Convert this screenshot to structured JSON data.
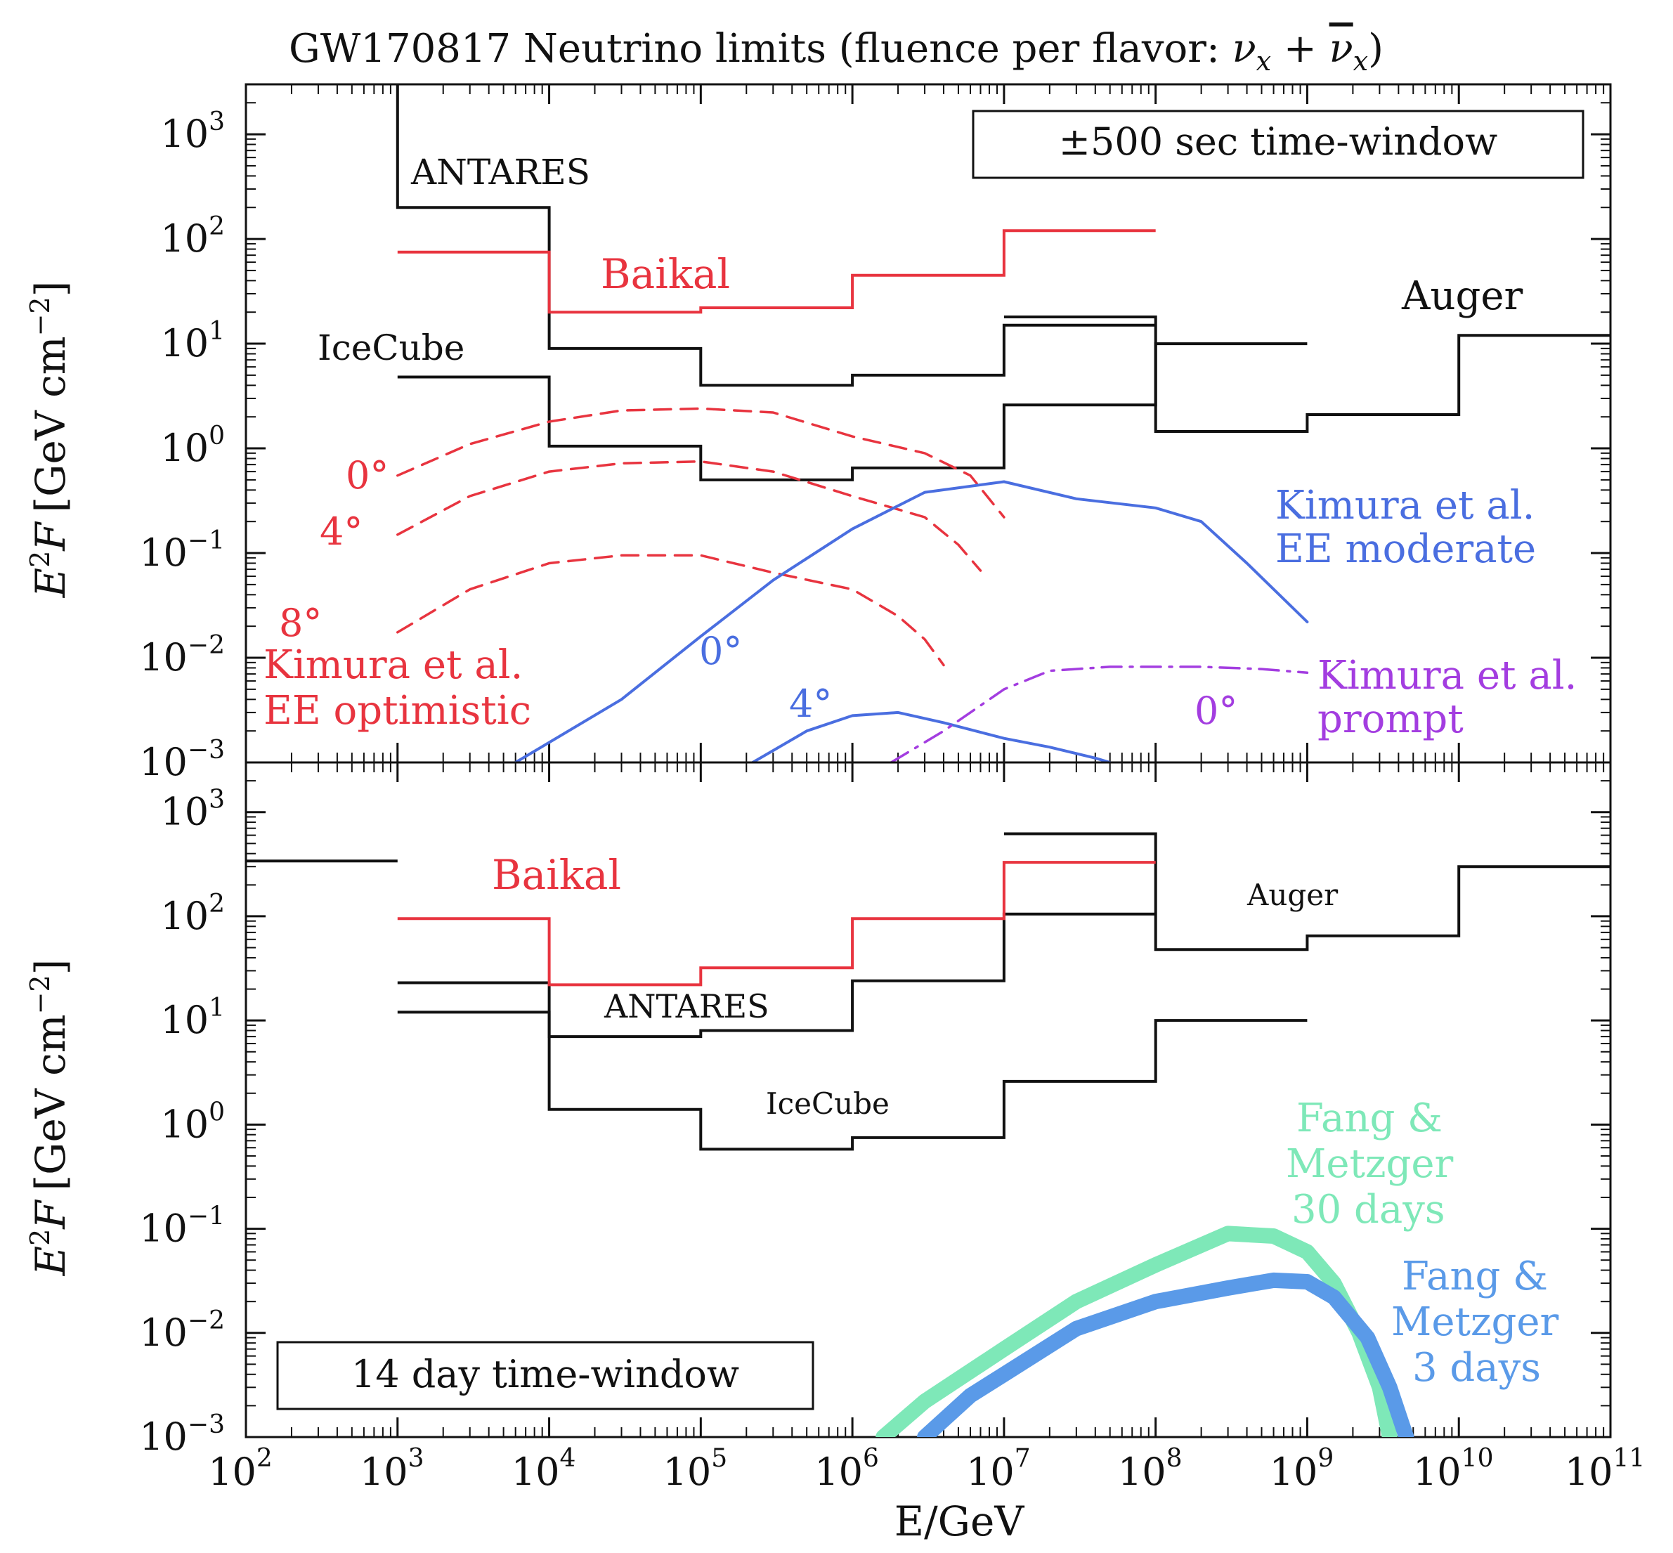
{
  "title": "GW170817 Neutrino limits (fluence per flavor: ",
  "title_formula": "ν",
  "title_sub_x": "x",
  "title_plus": " + ",
  "title_nubar": "ν",
  "title_close": ")",
  "xlabel": "E/GeV",
  "ylabel_main": "E",
  "ylabel_sup": "2",
  "ylabel_f": "F",
  "ylabel_unit": "[GeV cm",
  "ylabel_unit_sup": "−2",
  "ylabel_close": "]",
  "colors": {
    "black": "#111111",
    "red": "#e8343f",
    "blue": "#4a6ee0",
    "purple": "#a33de0",
    "green": "#7ee8b8",
    "lightblue": "#5a9ae8"
  },
  "chart_data": [
    {
      "type": "line",
      "panel": "top",
      "xscale": "log",
      "yscale": "log",
      "xlim": [
        100.0,
        100000000000.0
      ],
      "ylim": [
        0.001,
        3000.0
      ],
      "x_ticks": [
        "10",
        "10",
        "10",
        "10",
        "10",
        "10",
        "10",
        "10",
        "10",
        "10"
      ],
      "x_tick_exps": [
        "2",
        "3",
        "4",
        "5",
        "6",
        "7",
        "8",
        "9",
        "10",
        "11"
      ],
      "y_ticks": [
        "10",
        "10",
        "10",
        "10",
        "10",
        "10",
        "10"
      ],
      "y_tick_exps": [
        "−3",
        "−2",
        "−1",
        "0",
        "1",
        "2",
        "3"
      ],
      "window_label": "±500 sec time-window",
      "series": [
        {
          "name": "ANTARES",
          "style": "step",
          "color": "black",
          "steps": [
            [
              1000.0,
              10000.0,
              200
            ],
            [
              10000.0,
              100000.0,
              9
            ],
            [
              100000.0,
              1000000.0,
              4
            ],
            [
              1000000.0,
              10000000.0,
              5
            ],
            [
              10000000.0,
              100000000.0,
              15
            ]
          ],
          "top_start": 1000.0
        },
        {
          "name": "IceCube",
          "style": "step",
          "color": "black",
          "steps": [
            [
              1000.0,
              10000.0,
              4.8
            ],
            [
              10000.0,
              100000.0,
              1.05
            ],
            [
              100000.0,
              1000000.0,
              0.5
            ],
            [
              1000000.0,
              10000000.0,
              0.65
            ],
            [
              10000000.0,
              100000000.0,
              2.6
            ],
            [
              100000000.0,
              1000000000.0,
              10
            ]
          ]
        },
        {
          "name": "Auger",
          "style": "step",
          "color": "black",
          "steps": [
            [
              10000000.0,
              100000000.0,
              18
            ],
            [
              100000000.0,
              1000000000.0,
              1.45
            ],
            [
              1000000000.0,
              10000000000.0,
              2.1
            ],
            [
              10000000000.0,
              100000000000.0,
              12
            ]
          ]
        },
        {
          "name": "Baikal",
          "style": "step",
          "color": "red",
          "steps": [
            [
              1000.0,
              10000.0,
              75
            ],
            [
              10000.0,
              100000.0,
              20
            ],
            [
              100000.0,
              1000000.0,
              22
            ],
            [
              1000000.0,
              10000000.0,
              45
            ],
            [
              10000000.0,
              100000000.0,
              120
            ]
          ]
        },
        {
          "name": "Kimura EE optimistic 0°",
          "style": "dashed",
          "color": "red",
          "x": [
            1000.0,
            3000.0,
            10000.0,
            30000.0,
            100000.0,
            300000.0,
            1000000.0,
            3000000.0,
            6000000.0,
            10000000.0
          ],
          "y": [
            0.55,
            1.1,
            1.8,
            2.3,
            2.4,
            2.2,
            1.3,
            0.9,
            0.55,
            0.22
          ]
        },
        {
          "name": "Kimura EE optimistic 4°",
          "style": "dashed",
          "color": "red",
          "x": [
            1000.0,
            3000.0,
            10000.0,
            30000.0,
            100000.0,
            300000.0,
            1000000.0,
            3000000.0,
            5000000.0,
            7000000.0
          ],
          "y": [
            0.15,
            0.35,
            0.6,
            0.72,
            0.75,
            0.6,
            0.35,
            0.22,
            0.12,
            0.068
          ]
        },
        {
          "name": "Kimura EE optimistic 8°",
          "style": "dashed",
          "color": "red",
          "x": [
            1000.0,
            3000.0,
            10000.0,
            30000.0,
            100000.0,
            300000.0,
            1000000.0,
            2000000.0,
            3000000.0,
            4000000.0
          ],
          "y": [
            0.0175,
            0.045,
            0.08,
            0.095,
            0.095,
            0.065,
            0.045,
            0.025,
            0.015,
            0.0085
          ]
        },
        {
          "name": "Kimura EE moderate 0°",
          "style": "solid",
          "color": "blue",
          "x": [
            6000.0,
            30000.0,
            100000.0,
            300000.0,
            1000000.0,
            3000000.0,
            10000000.0,
            30000000.0,
            100000000.0,
            200000000.0,
            400000000.0,
            1000000000.0
          ],
          "y": [
            0.001,
            0.004,
            0.016,
            0.055,
            0.17,
            0.38,
            0.48,
            0.33,
            0.27,
            0.2,
            0.08,
            0.022
          ]
        },
        {
          "name": "Kimura EE moderate 4°",
          "style": "solid",
          "color": "blue",
          "x": [
            220000.0,
            500000.0,
            1000000.0,
            2000000.0,
            4000000.0,
            10000000.0,
            20000000.0,
            40000000.0,
            50000000.0
          ],
          "y": [
            0.001,
            0.002,
            0.0028,
            0.003,
            0.0024,
            0.0017,
            0.0014,
            0.0011,
            0.001
          ]
        },
        {
          "name": "Kimura prompt 0°",
          "style": "dashdot",
          "color": "purple",
          "x": [
            1800000.0,
            4000000.0,
            10000000.0,
            20000000.0,
            50000000.0,
            200000000.0,
            500000000.0,
            1000000000.0
          ],
          "y": [
            0.001,
            0.002,
            0.005,
            0.0075,
            0.0082,
            0.0082,
            0.0078,
            0.0072
          ]
        }
      ],
      "labels": {
        "antares": "ANTARES",
        "baikal": "Baikal",
        "icecube": "IceCube",
        "auger": "Auger",
        "deg0_red": "0°",
        "deg4_red": "4°",
        "deg8_red": "8°",
        "kimura_opt_1": "Kimura et al.",
        "kimura_opt_2": "EE optimistic",
        "deg0_blue": "0°",
        "deg4_blue": "4°",
        "kimura_mod_1": "Kimura et al.",
        "kimura_mod_2": "EE moderate",
        "deg0_purple": "0°",
        "kimura_prompt_1": "Kimura et al.",
        "kimura_prompt_2": "prompt"
      }
    },
    {
      "type": "line",
      "panel": "bottom",
      "xscale": "log",
      "yscale": "log",
      "xlim": [
        100.0,
        100000000000.0
      ],
      "ylim": [
        0.001,
        3000.0
      ],
      "x_ticks": [
        "10",
        "10",
        "10",
        "10",
        "10",
        "10",
        "10",
        "10",
        "10",
        "10"
      ],
      "x_tick_exps": [
        "2",
        "3",
        "4",
        "5",
        "6",
        "7",
        "8",
        "9",
        "10",
        "11"
      ],
      "y_ticks": [
        "10",
        "10",
        "10",
        "10",
        "10",
        "10",
        "10"
      ],
      "y_tick_exps": [
        "−3",
        "−2",
        "−1",
        "0",
        "1",
        "2",
        "3"
      ],
      "window_label": "14 day time-window",
      "series": [
        {
          "name": "Auger",
          "style": "step",
          "color": "black",
          "steps": [
            [
              100.0,
              1000.0,
              340
            ],
            [
              10000000.0,
              100000000.0,
              620
            ],
            [
              100000000.0,
              1000000000.0,
              48
            ],
            [
              1000000000.0,
              10000000000.0,
              65
            ],
            [
              10000000000.0,
              100000000000.0,
              300
            ]
          ]
        },
        {
          "name": "ANTARES",
          "style": "step",
          "color": "black",
          "steps": [
            [
              1000.0,
              10000.0,
              23
            ],
            [
              10000.0,
              100000.0,
              7
            ],
            [
              100000.0,
              1000000.0,
              8
            ],
            [
              1000000.0,
              10000000.0,
              24
            ],
            [
              10000000.0,
              100000000.0,
              105
            ]
          ]
        },
        {
          "name": "IceCube",
          "style": "step",
          "color": "black",
          "steps": [
            [
              1000.0,
              10000.0,
              12
            ],
            [
              10000.0,
              100000.0,
              1.4
            ],
            [
              100000.0,
              1000000.0,
              0.58
            ],
            [
              1000000.0,
              10000000.0,
              0.75
            ],
            [
              10000000.0,
              100000000.0,
              2.6
            ],
            [
              100000000.0,
              1000000000.0,
              10
            ]
          ]
        },
        {
          "name": "Baikal",
          "style": "step",
          "color": "red",
          "steps": [
            [
              1000.0,
              10000.0,
              95
            ],
            [
              10000.0,
              100000.0,
              22
            ],
            [
              100000.0,
              1000000.0,
              32
            ],
            [
              1000000.0,
              10000000.0,
              95
            ],
            [
              10000000.0,
              100000000.0,
              330
            ]
          ]
        },
        {
          "name": "Fang & Metzger 30 days",
          "style": "thick",
          "color": "green",
          "x": [
            1600000.0,
            3000000.0,
            10000000.0,
            30000000.0,
            100000000.0,
            300000000.0,
            600000000.0,
            1000000000.0,
            1500000000.0,
            2200000000.0,
            3000000000.0,
            3500000000.0
          ],
          "y": [
            0.001,
            0.0022,
            0.007,
            0.02,
            0.045,
            0.09,
            0.085,
            0.06,
            0.03,
            0.01,
            0.003,
            0.001
          ]
        },
        {
          "name": "Fang & Metzger 3 days",
          "style": "thick",
          "color": "lightblue",
          "x": [
            3000000.0,
            6000000.0,
            10000000.0,
            30000000.0,
            100000000.0,
            300000000.0,
            600000000.0,
            1000000000.0,
            1500000000.0,
            2500000000.0,
            3500000000.0,
            4500000000.0
          ],
          "y": [
            0.001,
            0.0025,
            0.004,
            0.011,
            0.02,
            0.027,
            0.032,
            0.031,
            0.022,
            0.009,
            0.003,
            0.001
          ]
        }
      ],
      "labels": {
        "baikal": "Baikal",
        "antares": "ANTARES",
        "icecube": "IceCube",
        "auger": "Auger",
        "fang30_1": "Fang &",
        "fang30_2": "Metzger",
        "fang30_3": "30 days",
        "fang3_1": "Fang &",
        "fang3_2": "Metzger",
        "fang3_3": "3 days"
      }
    }
  ]
}
